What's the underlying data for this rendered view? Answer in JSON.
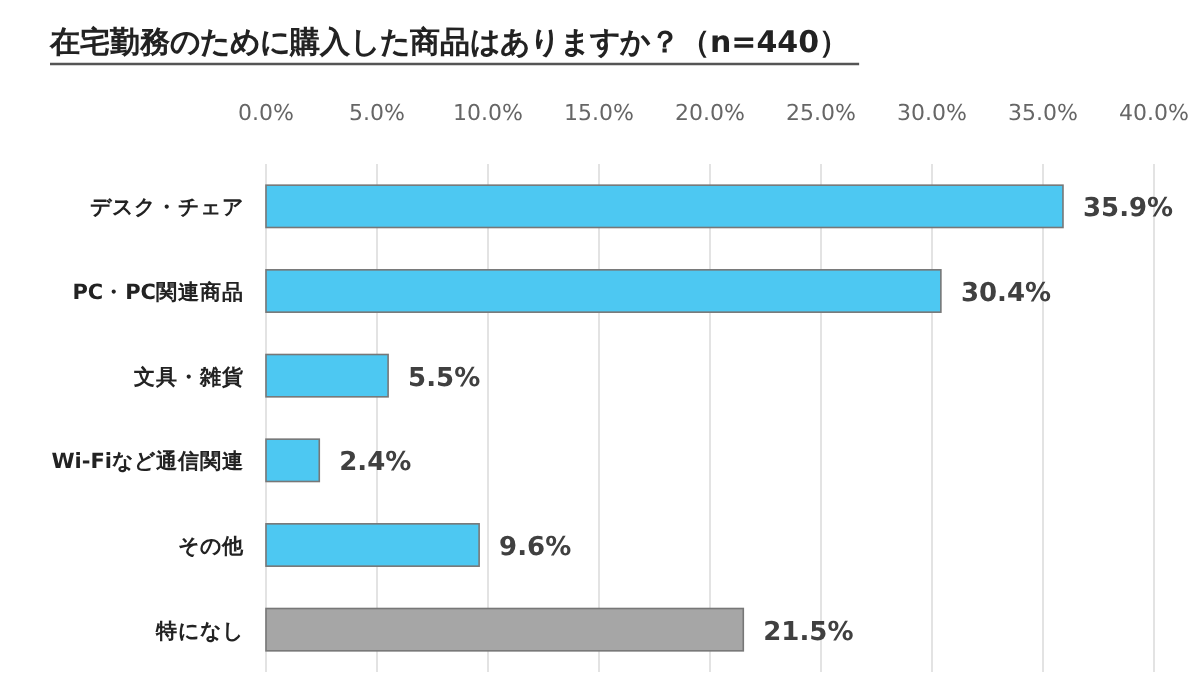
{
  "chart_data": {
    "type": "bar",
    "orientation": "horizontal",
    "title": "在宅勤務のために購入した商品はありますか？（n=440）",
    "categories": [
      "デスク・チェア",
      "PC・PC関連商品",
      "文具・雑貨",
      "Wi-Fiなど通信関連",
      "その他",
      "特になし"
    ],
    "values": [
      35.9,
      30.4,
      5.5,
      2.4,
      9.6,
      21.5
    ],
    "value_labels": [
      "35.9%",
      "30.4%",
      "5.5%",
      "2.4%",
      "9.6%",
      "21.5%"
    ],
    "colors": [
      "#4dc8f2",
      "#4dc8f2",
      "#4dc8f2",
      "#4dc8f2",
      "#4dc8f2",
      "#a6a6a6"
    ],
    "xlim": [
      0,
      40
    ],
    "xticks": [
      {
        "value": 0,
        "label": "0.0%"
      },
      {
        "value": 5,
        "label": "5.0%"
      },
      {
        "value": 10,
        "label": "10.0%"
      },
      {
        "value": 15,
        "label": "15.0%"
      },
      {
        "value": 20,
        "label": "20.0%"
      },
      {
        "value": 25,
        "label": "25.0%"
      },
      {
        "value": 30,
        "label": "30.0%"
      },
      {
        "value": 35,
        "label": "35.0%"
      },
      {
        "value": 40,
        "label": "40.0%"
      }
    ],
    "grid": "x"
  }
}
